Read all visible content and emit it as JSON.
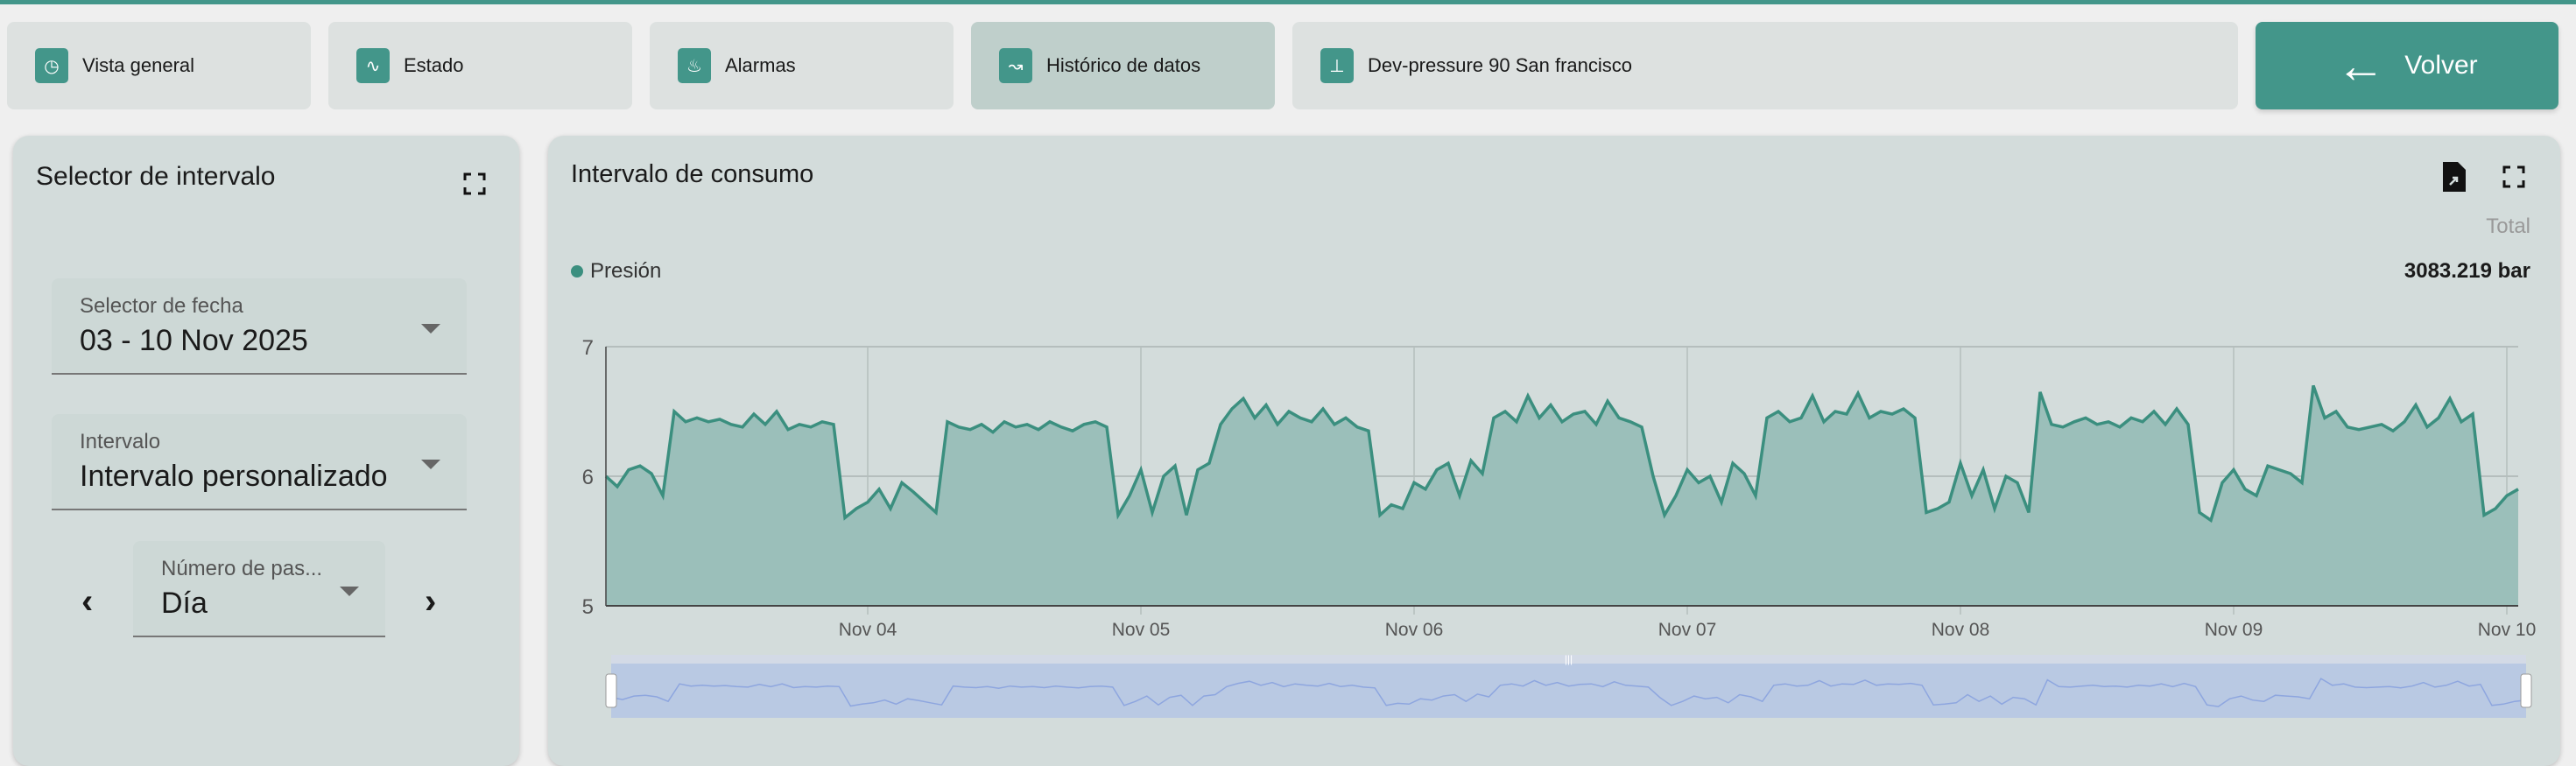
{
  "tabs": [
    {
      "label": "Vista general",
      "icon": "clipboard-clock-icon"
    },
    {
      "label": "Estado",
      "icon": "heart-pulse-icon"
    },
    {
      "label": "Alarmas",
      "icon": "alarm-bell-icon"
    },
    {
      "label": "Histórico de datos",
      "icon": "line-chart-icon",
      "active": true
    },
    {
      "label": "Dev-pressure 90 San francisco",
      "icon": "valve-icon"
    }
  ],
  "back_button": {
    "label": "Volver",
    "icon": "arrow-left-icon"
  },
  "interval_panel": {
    "title": "Selector de intervalo",
    "date_selector": {
      "label": "Selector de fecha",
      "value": "03 - 10 Nov 2025"
    },
    "interval": {
      "label": "Intervalo",
      "value": "Intervalo personalizado"
    },
    "step": {
      "label": "Número de pas...",
      "value": "Día"
    }
  },
  "chart_panel": {
    "title": "Intervalo de consumo",
    "total_label": "Total",
    "legend_label": "Presión",
    "total_value": "3083.219 bar",
    "colors": {
      "line": "#3b8f7f",
      "fill": "#9bbfba",
      "navigator": "#b9c9e3"
    }
  },
  "chart_data": {
    "type": "area",
    "series": [
      {
        "name": "Presión",
        "x_start": "2025-11-03 01:00",
        "x_step": "1h",
        "values": [
          6.0,
          5.92,
          6.05,
          6.08,
          6.02,
          5.85,
          6.5,
          6.42,
          6.45,
          6.42,
          6.44,
          6.4,
          6.38,
          6.48,
          6.4,
          6.5,
          6.36,
          6.4,
          6.38,
          6.42,
          6.4,
          5.68,
          5.75,
          5.8,
          5.9,
          5.75,
          5.95,
          5.88,
          5.8,
          5.72,
          6.42,
          6.38,
          6.36,
          6.4,
          6.34,
          6.42,
          6.38,
          6.4,
          6.36,
          6.42,
          6.38,
          6.35,
          6.4,
          6.42,
          6.38,
          5.7,
          5.85,
          6.05,
          5.72,
          6.0,
          6.08,
          5.7,
          6.05,
          6.1,
          6.4,
          6.52,
          6.6,
          6.45,
          6.55,
          6.4,
          6.5,
          6.45,
          6.42,
          6.52,
          6.4,
          6.45,
          6.38,
          6.35,
          5.7,
          5.78,
          5.75,
          5.95,
          5.9,
          6.05,
          6.1,
          5.85,
          6.12,
          6.02,
          6.45,
          6.5,
          6.42,
          6.62,
          6.45,
          6.55,
          6.42,
          6.48,
          6.5,
          6.4,
          6.58,
          6.45,
          6.42,
          6.38,
          6.0,
          5.7,
          5.85,
          6.05,
          5.95,
          6.0,
          5.8,
          6.1,
          6.02,
          5.85,
          6.45,
          6.5,
          6.42,
          6.45,
          6.62,
          6.42,
          6.5,
          6.48,
          6.64,
          6.45,
          6.5,
          6.48,
          6.52,
          6.45,
          5.72,
          5.75,
          5.8,
          6.1,
          5.85,
          6.05,
          5.75,
          6.0,
          5.95,
          5.72,
          6.65,
          6.4,
          6.38,
          6.42,
          6.45,
          6.4,
          6.42,
          6.38,
          6.45,
          6.42,
          6.5,
          6.4,
          6.52,
          6.4,
          5.72,
          5.66,
          5.95,
          6.05,
          5.9,
          5.85,
          6.08,
          6.05,
          6.02,
          5.95,
          6.7,
          6.45,
          6.5,
          6.38,
          6.36,
          6.38,
          6.4,
          6.35,
          6.42,
          6.55,
          6.38,
          6.45,
          6.6,
          6.42,
          6.48,
          5.7,
          5.75,
          5.85,
          5.9
        ]
      }
    ],
    "x_ticks": [
      "Nov 04",
      "Nov 05",
      "Nov 06",
      "Nov 07",
      "Nov 08",
      "Nov 09",
      "Nov 10"
    ],
    "y_ticks": [
      "5",
      "6",
      "7"
    ],
    "ylim": [
      5,
      7
    ],
    "xlim": [
      "2025-11-03 01:00",
      "2025-11-10 01:00"
    ],
    "grid": true,
    "legend": "top-left",
    "navigator": true
  }
}
